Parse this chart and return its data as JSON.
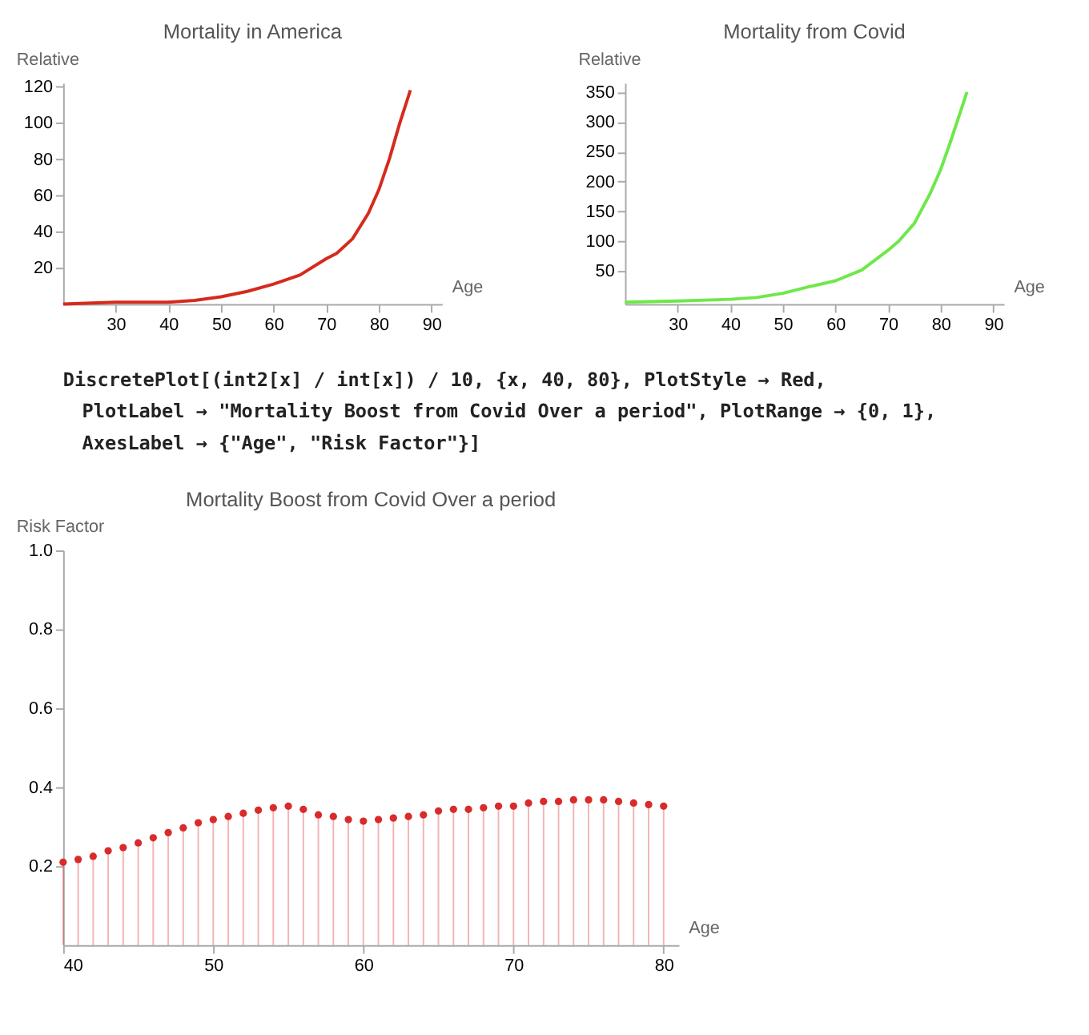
{
  "chart_data": [
    {
      "type": "line",
      "title": "Mortality in America",
      "xlabel": "Age",
      "ylabel": "Relative",
      "xlim": [
        20,
        92
      ],
      "ylim": [
        0,
        122
      ],
      "xticks": [
        30,
        40,
        50,
        60,
        70,
        80,
        90
      ],
      "yticks": [
        20,
        40,
        60,
        80,
        100,
        120
      ],
      "grid": false,
      "series": [
        {
          "color": "#d62a1e",
          "x": [
            20,
            30,
            40,
            45,
            50,
            55,
            60,
            65,
            70,
            72,
            75,
            78,
            80,
            82,
            84,
            86
          ],
          "values": [
            0,
            1,
            1,
            2,
            4,
            7,
            11,
            16,
            25,
            28,
            36,
            50,
            63,
            80,
            100,
            118
          ]
        }
      ]
    },
    {
      "type": "line",
      "title": "Mortality from Covid",
      "xlabel": "Age",
      "ylabel": "Relative",
      "xlim": [
        20,
        92
      ],
      "ylim": [
        -5,
        365
      ],
      "xticks": [
        30,
        40,
        50,
        60,
        70,
        80,
        90
      ],
      "yticks": [
        50,
        100,
        150,
        200,
        250,
        300,
        350
      ],
      "grid": false,
      "series": [
        {
          "color": "#6ee84a",
          "x": [
            20,
            30,
            40,
            45,
            50,
            55,
            60,
            65,
            70,
            72,
            75,
            78,
            80,
            82,
            85
          ],
          "values": [
            -2,
            0,
            3,
            6,
            13,
            24,
            34,
            52,
            85,
            100,
            130,
            180,
            220,
            270,
            350
          ]
        }
      ]
    },
    {
      "type": "lollipop",
      "title": "Mortality Boost from Covid Over a period",
      "xlabel": "Age",
      "ylabel": "Risk Factor",
      "xlim": [
        40,
        81
      ],
      "ylim": [
        0,
        1
      ],
      "xticks": [
        40,
        50,
        60,
        70,
        80
      ],
      "yticks": [
        {
          "value": 0.2,
          "label": "0.2"
        },
        {
          "value": 0.4,
          "label": "0.4"
        },
        {
          "value": 0.6,
          "label": "0.6"
        },
        {
          "value": 0.8,
          "label": "0.8"
        },
        {
          "value": 1,
          "label": "1.0"
        }
      ],
      "grid": false,
      "marker": "circle",
      "annotations": [
        "DiscretePlot[(int2[x] / int[x]) / 10, {x, 40, 80}, PlotStyle → Red,",
        "PlotLabel → \"Mortality Boost from Covid Over a period\", PlotRange → {0, 1},",
        "AxesLabel → {\"Age\", \"Risk Factor\"}]"
      ],
      "series": [
        {
          "color": "#d92b2b",
          "x": [
            40,
            41,
            42,
            43,
            44,
            45,
            46,
            47,
            48,
            49,
            50,
            51,
            52,
            53,
            54,
            55,
            56,
            57,
            58,
            59,
            60,
            61,
            62,
            63,
            64,
            65,
            66,
            67,
            68,
            69,
            70,
            71,
            72,
            73,
            74,
            75,
            76,
            77,
            78,
            79,
            80
          ],
          "values": [
            0.21,
            0.217,
            0.225,
            0.239,
            0.247,
            0.259,
            0.272,
            0.285,
            0.297,
            0.31,
            0.318,
            0.326,
            0.334,
            0.342,
            0.348,
            0.352,
            0.344,
            0.33,
            0.326,
            0.318,
            0.314,
            0.318,
            0.322,
            0.326,
            0.33,
            0.34,
            0.344,
            0.344,
            0.348,
            0.352,
            0.352,
            0.36,
            0.364,
            0.364,
            0.368,
            0.368,
            0.368,
            0.364,
            0.36,
            0.356,
            0.352
          ]
        }
      ]
    }
  ]
}
